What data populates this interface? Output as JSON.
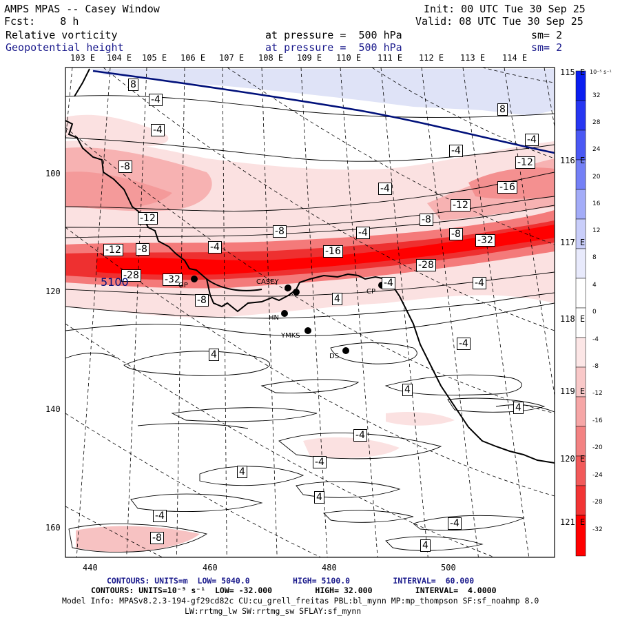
{
  "header": {
    "title": "AMPS MPAS -- Casey Window",
    "forecast": "Fcst:    8 h",
    "field1": "Relative vorticity",
    "field2": "Geopotential height",
    "init": "Init: 00 UTC Tue 30 Sep 25",
    "valid": "Valid: 08 UTC Tue 30 Sep 25",
    "pressure1": "at pressure =  500 hPa",
    "pressure2": "at pressure =  500 hPa",
    "sm1": "sm= 2",
    "sm2": "sm= 2"
  },
  "colors": {
    "neg_strong": "#ff0000",
    "neg_mid": "#f47a7a",
    "neg_weak": "#fbe1e1",
    "pos_weak": "#dfe3f7",
    "pos_strong": "#0000ff",
    "height_contour": "#00107a"
  },
  "axes": {
    "top_lon": [
      "103 E",
      "104 E",
      "105 E",
      "106 E",
      "107 E",
      "108 E",
      "109 E",
      "110 E",
      "111 E",
      "112 E",
      "113 E",
      "114 E"
    ],
    "right_lon": [
      "115 E",
      "116 E",
      "117 E",
      "118 E",
      "119 E",
      "120 E",
      "121 E"
    ],
    "left_y": [
      "100",
      "120",
      "140",
      "160"
    ],
    "bottom_x": [
      "440",
      "460",
      "480",
      "500"
    ]
  },
  "colorbar": {
    "unit": "10⁻⁵ s⁻¹",
    "ticks": [
      "32",
      "28",
      "24",
      "20",
      "16",
      "12",
      "8",
      "4",
      "0",
      "-4",
      "-8",
      "-12",
      "-16",
      "-20",
      "-24",
      "-28",
      "-32"
    ]
  },
  "contour_labels": {
    "height_5100": "5100",
    "vort": [
      "8",
      "-4",
      "-4",
      "-8",
      "-12",
      "-12",
      "-8",
      "-4",
      "-28",
      "-32",
      "-8",
      "-4",
      "-8",
      "-16",
      "-4",
      "-8",
      "-8",
      "-12",
      "-12",
      "-16",
      "-32",
      "-28",
      "-4",
      "-4",
      "-4",
      "-4",
      "4",
      "4",
      "-4",
      "-4",
      "4",
      "4",
      "-4",
      "-4",
      "-8",
      "4",
      "-4",
      "4",
      "8",
      "4"
    ]
  },
  "stations": [
    "CASEY",
    "CP",
    "HN",
    "YMKS",
    "DS",
    "GP"
  ],
  "footer": {
    "line1": "CONTOURS: UNITS=m  LOW= 5040.0         HIGH= 5100.0         INTERVAL=  60.000",
    "line2": "CONTOURS: UNITS=10⁻⁵ s⁻¹  LOW= -32.000         HIGH= 32.000         INTERVAL=  4.0000",
    "line3": "Model Info: MPASv8.2.3-194-gf29cd82c CU:cu_grell_freitas PBL:bl_mynn MP:mp_thompson SF:sf_noahmp 8.0",
    "line4": "LW:rrtmg_lw SW:rrtmg_sw SFLAY:sf_mynn"
  }
}
